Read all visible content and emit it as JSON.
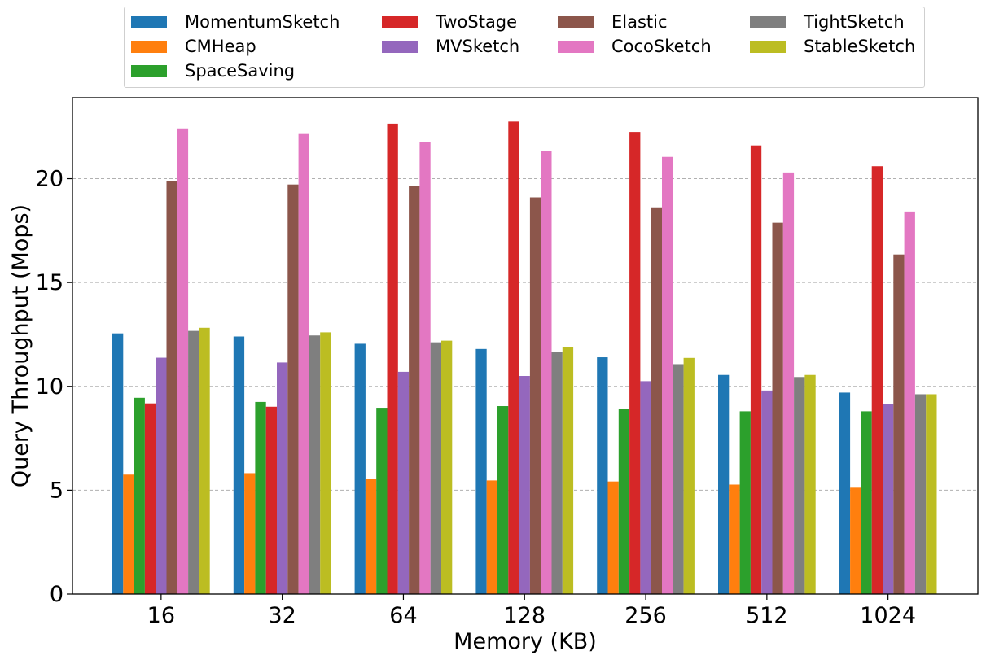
{
  "chart_data": {
    "type": "bar",
    "xlabel": "Memory (KB)",
    "ylabel": "Query Throughput (Mops)",
    "categories": [
      "16",
      "32",
      "64",
      "128",
      "256",
      "512",
      "1024"
    ],
    "ylim": [
      0,
      23.9
    ],
    "yticks": [
      0,
      5,
      10,
      15,
      20
    ],
    "grid": "y-dashed",
    "legend_position": "top-center",
    "series": [
      {
        "name": "MomentumSketch",
        "color": "#1f77b4",
        "values": [
          12.55,
          12.4,
          12.05,
          11.8,
          11.4,
          10.55,
          9.7
        ]
      },
      {
        "name": "CMHeap",
        "color": "#ff7f0e",
        "values": [
          5.75,
          5.82,
          5.55,
          5.47,
          5.42,
          5.27,
          5.12
        ]
      },
      {
        "name": "SpaceSaving",
        "color": "#2ca02c",
        "values": [
          9.45,
          9.25,
          8.97,
          9.05,
          8.9,
          8.8,
          8.8
        ]
      },
      {
        "name": "TwoStage",
        "color": "#d62728",
        "values": [
          9.18,
          9.02,
          22.65,
          22.75,
          22.25,
          21.6,
          20.6
        ]
      },
      {
        "name": "MVSketch",
        "color": "#9467bd",
        "values": [
          11.38,
          11.15,
          10.7,
          10.5,
          10.25,
          9.8,
          9.15
        ]
      },
      {
        "name": "Elastic",
        "color": "#8c564b",
        "values": [
          19.9,
          19.72,
          19.65,
          19.1,
          18.62,
          17.88,
          16.35
        ]
      },
      {
        "name": "CocoSketch",
        "color": "#e377c2",
        "values": [
          22.42,
          22.15,
          21.75,
          21.35,
          21.05,
          20.3,
          18.42
        ]
      },
      {
        "name": "TightSketch",
        "color": "#7f7f7f",
        "values": [
          12.67,
          12.45,
          12.12,
          11.65,
          11.07,
          10.45,
          9.62
        ]
      },
      {
        "name": "StableSketch",
        "color": "#bcbd22",
        "values": [
          12.82,
          12.6,
          12.2,
          11.88,
          11.37,
          10.55,
          9.62
        ]
      }
    ]
  }
}
